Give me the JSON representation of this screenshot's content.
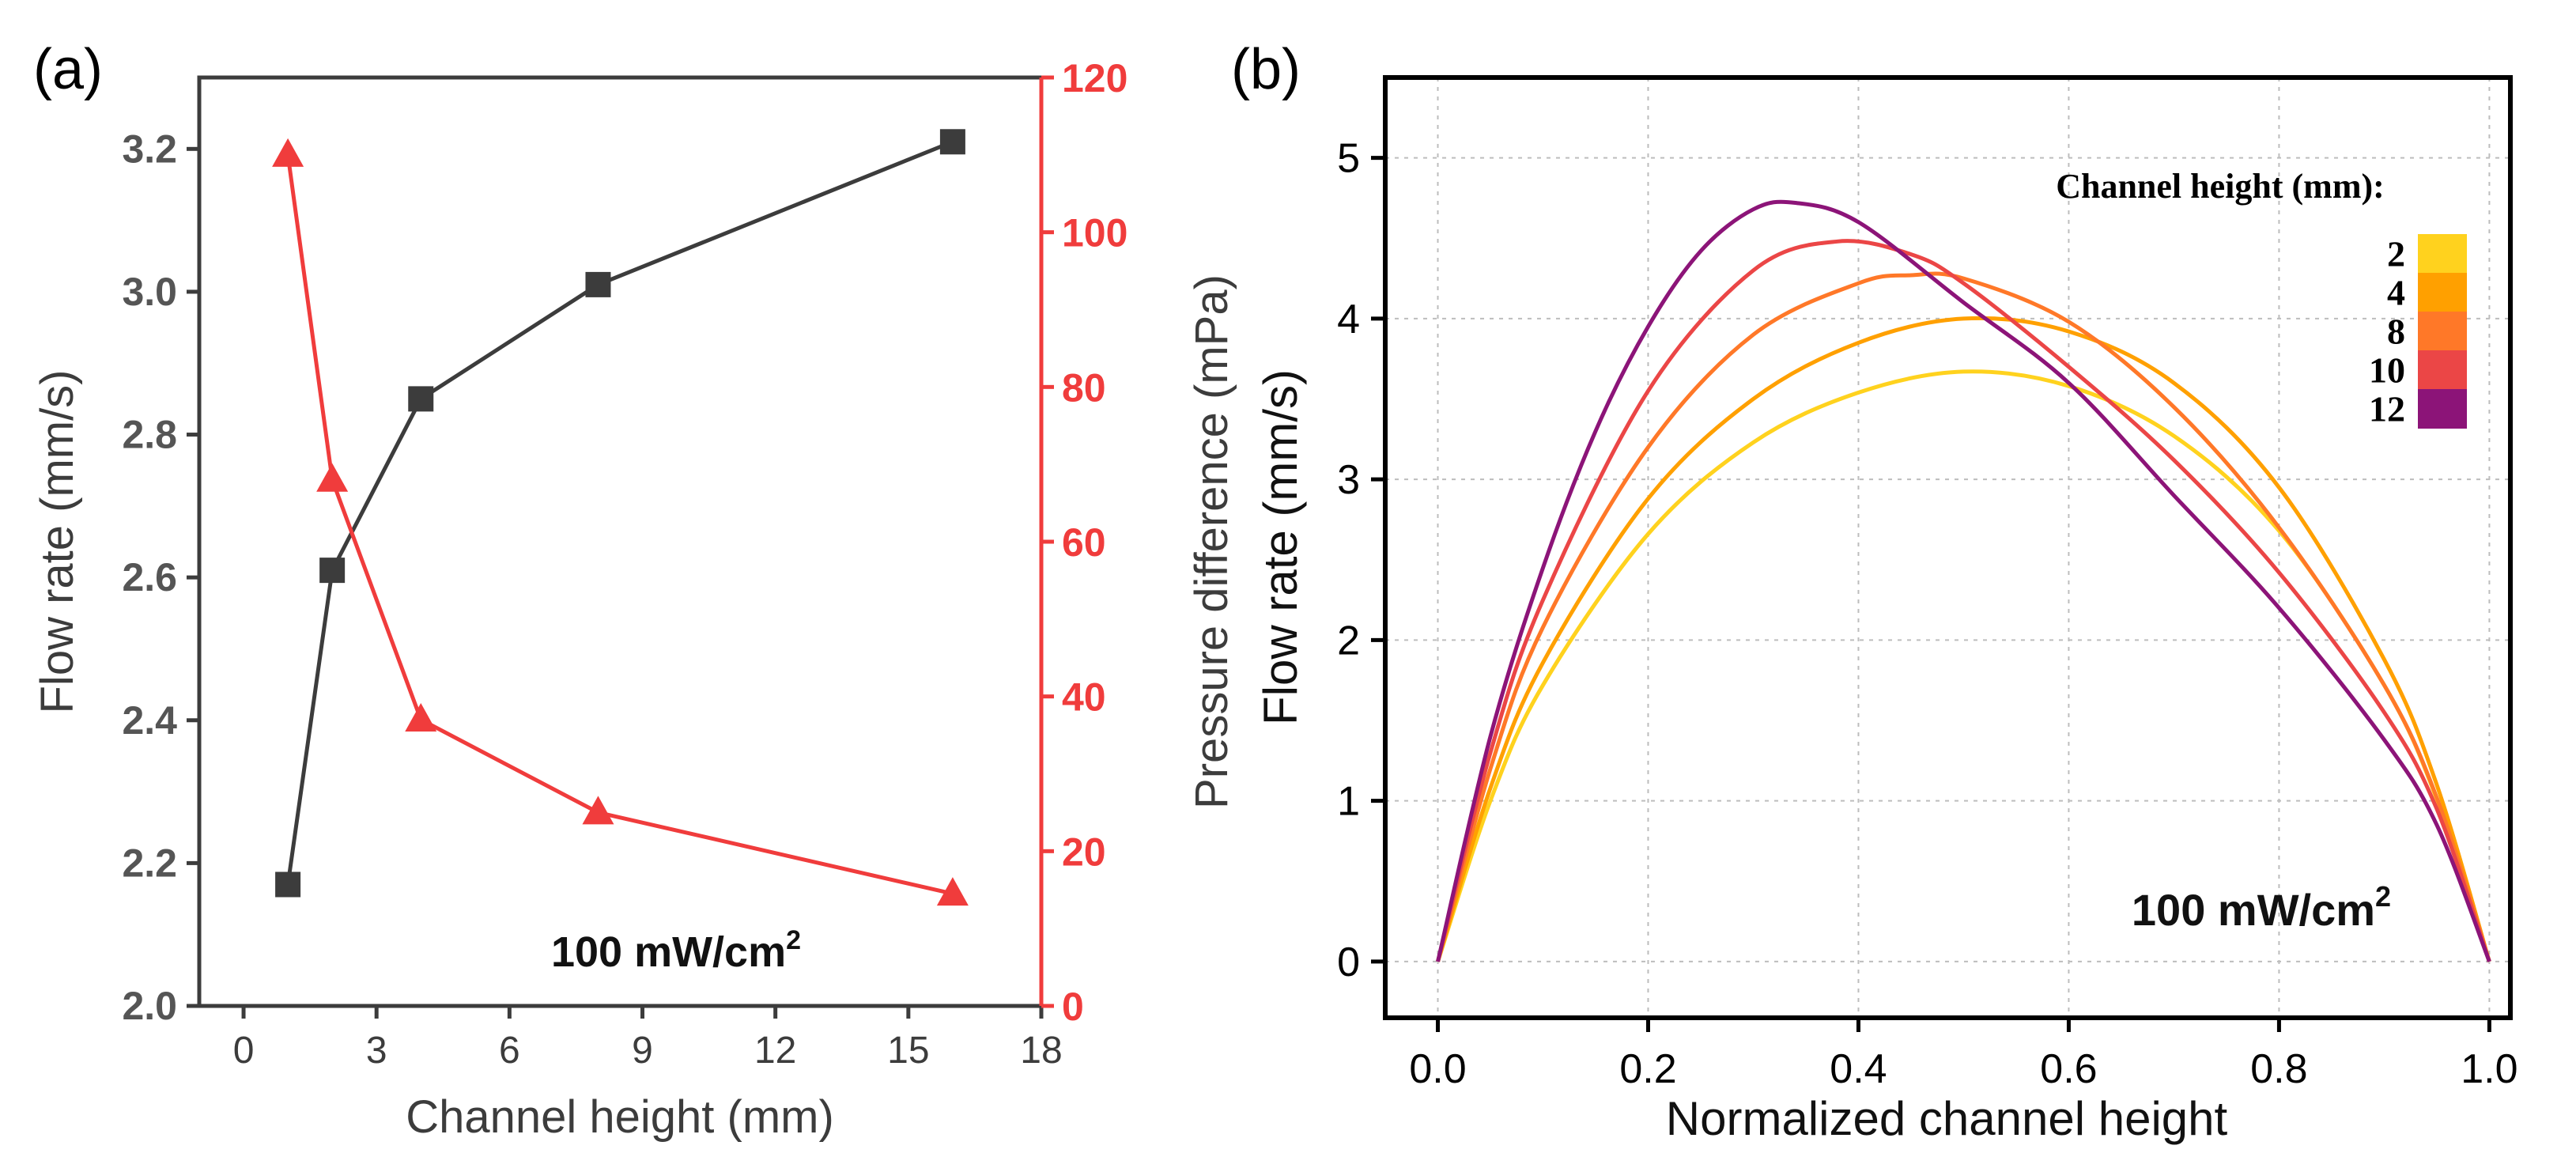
{
  "chart_data": [
    {
      "type": "line",
      "panel_label": "(a)",
      "xlabel": "Channel height (mm)",
      "ylabel_left": "Flow rate (mm/s)",
      "ylabel_right": "Pressure difference (mPa)",
      "annotation": "100 mW/cm",
      "annotation_sup": "2",
      "xlim": [
        -1,
        18
      ],
      "ylim_left": [
        2.0,
        3.3
      ],
      "ylim_right": [
        0,
        120
      ],
      "x_ticks": [
        0,
        3,
        6,
        9,
        12,
        15,
        18
      ],
      "x_tick_labels": [
        "0",
        "3",
        "6",
        "9",
        "12",
        "15",
        "18"
      ],
      "yleft_ticks": [
        2.0,
        2.2,
        2.4,
        2.6,
        2.8,
        3.0,
        3.2
      ],
      "yleft_tick_labels": [
        "2.0",
        "2.2",
        "2.4",
        "2.6",
        "2.8",
        "3.0",
        "3.2"
      ],
      "yright_ticks": [
        0,
        20,
        40,
        60,
        80,
        100,
        120
      ],
      "yright_tick_labels": [
        "0",
        "20",
        "40",
        "60",
        "80",
        "100",
        "120"
      ],
      "grid": false,
      "series": [
        {
          "name": "Flow rate",
          "axis": "left",
          "marker": "square",
          "color": "#3c3c3c",
          "x": [
            1,
            2,
            4,
            8,
            16
          ],
          "values": [
            2.17,
            2.61,
            2.85,
            3.01,
            3.21
          ]
        },
        {
          "name": "Pressure difference",
          "axis": "right",
          "marker": "triangle",
          "color": "#f03c3c",
          "x": [
            1,
            2,
            4,
            8,
            16
          ],
          "values": [
            110,
            68,
            37,
            25,
            14.5
          ]
        }
      ]
    },
    {
      "type": "line",
      "panel_label": "(b)",
      "xlabel": "Normalized channel height",
      "ylabel": "Flow rate (mm/s)",
      "annotation": "100 mW/cm",
      "annotation_sup": "2",
      "xlim": [
        -0.05,
        1.02
      ],
      "ylim": [
        -0.35,
        5.5
      ],
      "x_ticks": [
        0.0,
        0.2,
        0.4,
        0.6,
        0.8,
        1.0
      ],
      "x_tick_labels": [
        "0.0",
        "0.2",
        "0.4",
        "0.6",
        "0.8",
        "1.0"
      ],
      "y_ticks": [
        0,
        1,
        2,
        3,
        4,
        5
      ],
      "y_tick_labels": [
        "0",
        "1",
        "2",
        "3",
        "4",
        "5"
      ],
      "grid": true,
      "legend": {
        "title": "Channel height (mm):",
        "placement": "top-right",
        "entries": [
          {
            "label": "2",
            "color": "#ffd21e"
          },
          {
            "label": "4",
            "color": "#ffa000"
          },
          {
            "label": "8",
            "color": "#ff7828"
          },
          {
            "label": "10",
            "color": "#eb4646"
          },
          {
            "label": "12",
            "color": "#8c1478"
          }
        ]
      },
      "series": [
        {
          "name": "2",
          "color": "#ffd21e",
          "x": [
            0,
            0.05,
            0.1,
            0.2,
            0.3,
            0.4,
            0.5,
            0.6,
            0.7,
            0.8,
            0.9,
            0.95,
            1.0
          ],
          "values": [
            0,
            1.0,
            1.72,
            2.66,
            3.23,
            3.54,
            3.67,
            3.58,
            3.27,
            2.68,
            1.72,
            1.01,
            0
          ]
        },
        {
          "name": "4",
          "color": "#ffa000",
          "x": [
            0,
            0.05,
            0.1,
            0.2,
            0.3,
            0.4,
            0.5,
            0.6,
            0.7,
            0.8,
            0.9,
            0.95,
            1.0
          ],
          "values": [
            0,
            1.08,
            1.86,
            2.88,
            3.5,
            3.85,
            4.0,
            3.92,
            3.6,
            2.95,
            1.88,
            1.1,
            0
          ]
        },
        {
          "name": "8",
          "color": "#ff7828",
          "x": [
            0,
            0.05,
            0.1,
            0.2,
            0.3,
            0.4,
            0.45,
            0.5,
            0.6,
            0.7,
            0.8,
            0.9,
            0.95,
            1.0
          ],
          "values": [
            0,
            1.2,
            2.08,
            3.2,
            3.9,
            4.22,
            4.27,
            4.25,
            3.98,
            3.45,
            2.7,
            1.72,
            1.02,
            0
          ]
        },
        {
          "name": "10",
          "color": "#eb4646",
          "x": [
            0,
            0.05,
            0.1,
            0.2,
            0.3,
            0.38,
            0.45,
            0.5,
            0.6,
            0.7,
            0.8,
            0.9,
            0.95,
            1.0
          ],
          "values": [
            0,
            1.3,
            2.25,
            3.55,
            4.3,
            4.48,
            4.4,
            4.22,
            3.7,
            3.12,
            2.42,
            1.55,
            0.95,
            0
          ]
        },
        {
          "name": "12",
          "color": "#8c1478",
          "x": [
            0,
            0.05,
            0.1,
            0.15,
            0.2,
            0.25,
            0.3,
            0.34,
            0.4,
            0.5,
            0.6,
            0.7,
            0.8,
            0.9,
            0.95,
            1.0
          ],
          "values": [
            0,
            1.4,
            2.45,
            3.3,
            3.95,
            4.42,
            4.68,
            4.72,
            4.6,
            4.1,
            3.6,
            2.9,
            2.2,
            1.38,
            0.85,
            0
          ]
        }
      ]
    }
  ]
}
